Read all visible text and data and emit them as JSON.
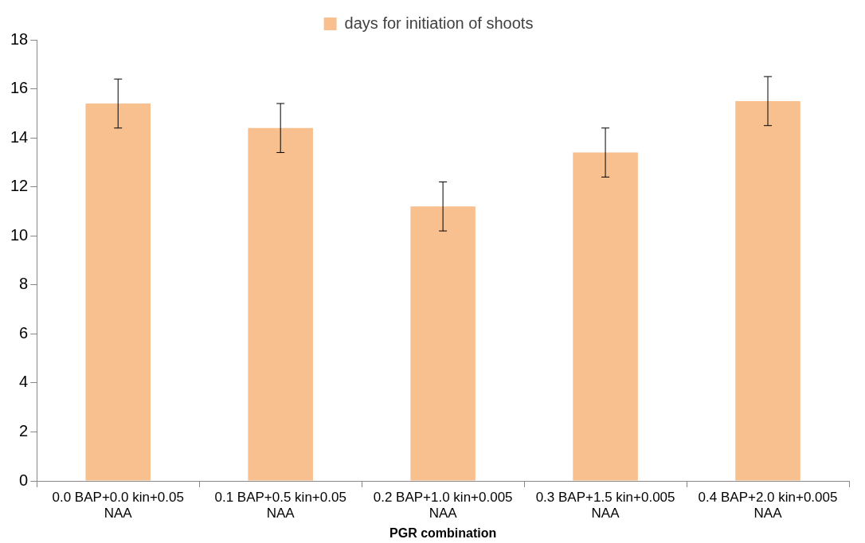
{
  "chart_data": {
    "type": "bar",
    "xlabel": "PGR combination",
    "categories": [
      "0.0 BAP+0.0 kin+0.05 NAA",
      "0.1 BAP+0.5 kin+0.05 NAA",
      "0.2 BAP+1.0 kin+0.005 NAA",
      "0.3 BAP+1.5 kin+0.005 NAA",
      "0.4 BAP+2.0 kin+0.005 NAA"
    ],
    "series": [
      {
        "name": "days for initiation of shoots",
        "color": "#f9c08f",
        "values": [
          15.4,
          14.4,
          11.2,
          13.4,
          15.5
        ],
        "errors": [
          1,
          1,
          1,
          1,
          1
        ]
      }
    ],
    "ylim": [
      0,
      18
    ],
    "yticks": [
      0,
      2,
      4,
      6,
      8,
      10,
      12,
      14,
      16,
      18
    ],
    "grid": false,
    "legend": "top"
  }
}
